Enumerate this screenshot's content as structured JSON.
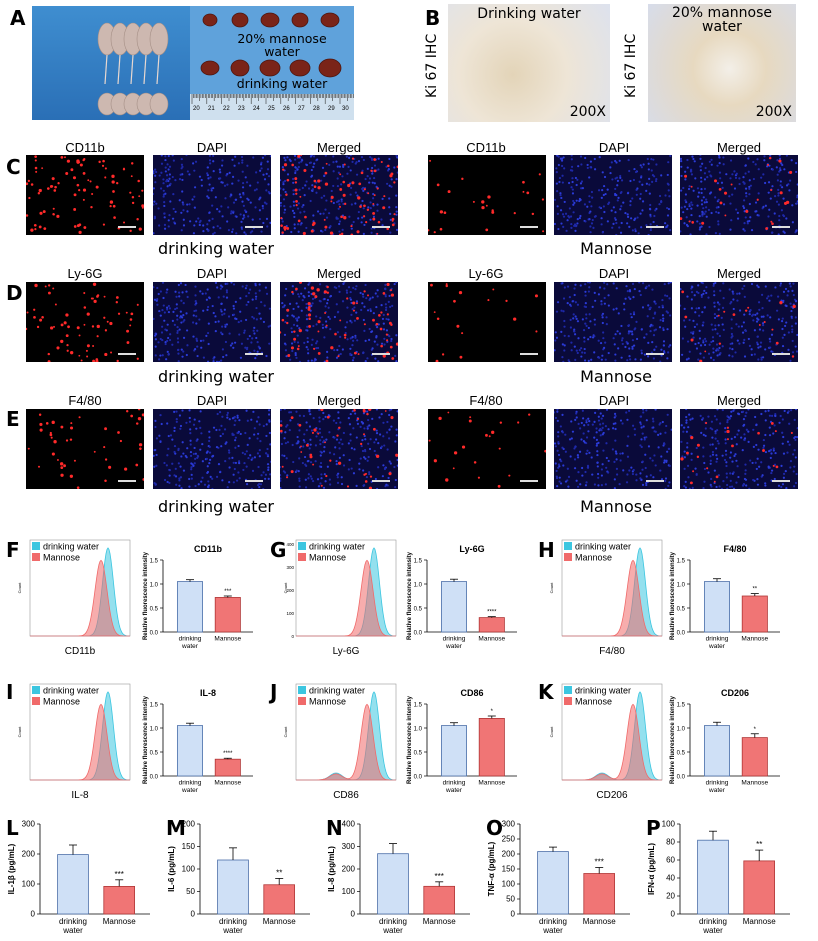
{
  "panel_letters": [
    "A",
    "B",
    "C",
    "D",
    "E",
    "F",
    "G",
    "H",
    "I",
    "J",
    "K",
    "L",
    "M",
    "N",
    "O",
    "P"
  ],
  "panelA": {
    "label_mannose": "20% mannose\nwater",
    "label_drinking": "drinking water",
    "ruler_ticks": [
      "20",
      "21",
      "22",
      "23",
      "24",
      "25",
      "26",
      "27",
      "28",
      "29",
      "30"
    ]
  },
  "panelB": {
    "axis_label": "Ki 67 IHC",
    "images": [
      {
        "title": "Drinking water",
        "mag": "200X"
      },
      {
        "title": "20% mannose\nwater",
        "mag": "200X"
      }
    ]
  },
  "if_rows": [
    {
      "marker": "CD11b",
      "dapi": "DAPI",
      "merged": "Merged",
      "left_group": "drinking water",
      "right_group": "Mannose"
    },
    {
      "marker": "Ly-6G",
      "dapi": "DAPI",
      "merged": "Merged",
      "left_group": "drinking water",
      "right_group": "Mannose"
    },
    {
      "marker": "F4/80",
      "dapi": "DAPI",
      "merged": "Merged",
      "left_group": "drinking water",
      "right_group": "Mannose"
    }
  ],
  "colors": {
    "drinking": "#3cc6e0",
    "mannose": "#f06a6a",
    "bar_blue": "#cfe0f6",
    "bar_red": "#f07575"
  },
  "chart_data": [
    {
      "panel": "F",
      "type": "area",
      "xlabel": "CD11b",
      "ylabel": "Count",
      "legend": [
        "drinking water",
        "Mannose"
      ],
      "legend_position": "top-left",
      "peaks": {
        "drinking water": 1.0,
        "Mannose": 0.85
      }
    },
    {
      "panel": "F",
      "type": "bar",
      "title": "CD11b",
      "ylabel": "Relative fluorescence intensity",
      "categories": [
        "drinking\nwater",
        "Mannose"
      ],
      "values": [
        1.05,
        0.72
      ],
      "errors": [
        0.04,
        0.03
      ],
      "ylim": [
        0,
        1.5
      ],
      "yticks": [
        "0.0",
        "0.5",
        "1.0",
        "1.5"
      ],
      "significance": "***"
    },
    {
      "panel": "G",
      "type": "area",
      "xlabel": "Ly-6G",
      "ylabel": "Count",
      "legend": [
        "drinking water",
        "Mannose"
      ],
      "legend_position": "top-left",
      "yticks": [
        "0",
        "100",
        "200",
        "300",
        "400"
      ]
    },
    {
      "panel": "G",
      "type": "bar",
      "title": "Ly-6G",
      "ylabel": "Relative fluorescence intensity",
      "categories": [
        "drinking\nwater",
        "Mannose"
      ],
      "values": [
        1.05,
        0.3
      ],
      "errors": [
        0.05,
        0.02
      ],
      "ylim": [
        0,
        1.5
      ],
      "yticks": [
        "0.0",
        "0.5",
        "1.0",
        "1.5"
      ],
      "significance": "****"
    },
    {
      "panel": "H",
      "type": "area",
      "xlabel": "F4/80",
      "ylabel": "Count",
      "legend": [
        "drinking water",
        "Mannose"
      ],
      "legend_position": "top-left"
    },
    {
      "panel": "H",
      "type": "bar",
      "title": "F4/80",
      "ylabel": "Relative fluorescence intensity",
      "categories": [
        "drinking\nwater",
        "Mannose"
      ],
      "values": [
        1.05,
        0.75
      ],
      "errors": [
        0.06,
        0.05
      ],
      "ylim": [
        0,
        1.5
      ],
      "yticks": [
        "0.0",
        "0.5",
        "1.0",
        "1.5"
      ],
      "significance": "**"
    },
    {
      "panel": "I",
      "type": "area",
      "xlabel": "IL-8",
      "ylabel": "Count",
      "legend": [
        "drinking water",
        "Mannose"
      ],
      "legend_position": "top-left"
    },
    {
      "panel": "I",
      "type": "bar",
      "title": "IL-8",
      "ylabel": "Relative fluorescence intensity",
      "categories": [
        "drinking\nwater",
        "Mannose"
      ],
      "values": [
        1.05,
        0.35
      ],
      "errors": [
        0.05,
        0.02
      ],
      "ylim": [
        0,
        1.5
      ],
      "yticks": [
        "0.0",
        "0.5",
        "1.0",
        "1.5"
      ],
      "significance": "****"
    },
    {
      "panel": "J",
      "type": "area",
      "xlabel": "CD86",
      "ylabel": "Count",
      "legend": [
        "drinking water",
        "Mannose"
      ],
      "legend_position": "top-left"
    },
    {
      "panel": "J",
      "type": "bar",
      "title": "CD86",
      "ylabel": "Relative fluorescence intensity",
      "categories": [
        "drinking\nwater",
        "Mannose"
      ],
      "values": [
        1.05,
        1.2
      ],
      "errors": [
        0.06,
        0.05
      ],
      "ylim": [
        0,
        1.5
      ],
      "yticks": [
        "0.0",
        "0.5",
        "1.0",
        "1.5"
      ],
      "significance": "*"
    },
    {
      "panel": "K",
      "type": "area",
      "xlabel": "CD206",
      "ylabel": "Count",
      "legend": [
        "drinking water",
        "Mannose"
      ],
      "legend_position": "top-left"
    },
    {
      "panel": "K",
      "type": "bar",
      "title": "CD206",
      "ylabel": "Relative fluorescence intensity",
      "categories": [
        "drinking\nwater",
        "Mannose"
      ],
      "values": [
        1.05,
        0.8
      ],
      "errors": [
        0.07,
        0.08
      ],
      "ylim": [
        0,
        1.5
      ],
      "yticks": [
        "0.0",
        "0.5",
        "1.0",
        "1.5"
      ],
      "significance": "*"
    },
    {
      "panel": "L",
      "type": "bar",
      "ylabel": "IL-1β (pg/mL)",
      "categories": [
        "drinking\nwater",
        "Mannose"
      ],
      "values": [
        198,
        92
      ],
      "errors": [
        32,
        22
      ],
      "ylim": [
        0,
        300
      ],
      "yticks": [
        "0",
        "100",
        "200",
        "300"
      ],
      "significance": "***"
    },
    {
      "panel": "M",
      "type": "bar",
      "ylabel": "IL-6 (pg/mL)",
      "categories": [
        "drinking\nwater",
        "Mannose"
      ],
      "values": [
        120,
        65
      ],
      "errors": [
        27,
        14
      ],
      "ylim": [
        0,
        200
      ],
      "yticks": [
        "0",
        "50",
        "100",
        "150",
        "200"
      ],
      "significance": "**"
    },
    {
      "panel": "N",
      "type": "bar",
      "ylabel": "IL-8 (pg/mL)",
      "categories": [
        "drinking\nwater",
        "Mannose"
      ],
      "values": [
        268,
        123
      ],
      "errors": [
        45,
        20
      ],
      "ylim": [
        0,
        400
      ],
      "yticks": [
        "0",
        "100",
        "200",
        "300",
        "400"
      ],
      "significance": "***"
    },
    {
      "panel": "O",
      "type": "bar",
      "ylabel": "TNF-α (pg/mL)",
      "categories": [
        "drinking\nwater",
        "Mannose"
      ],
      "values": [
        208,
        135
      ],
      "errors": [
        15,
        20
      ],
      "ylim": [
        0,
        300
      ],
      "yticks": [
        "0",
        "50",
        "100",
        "150",
        "200",
        "250",
        "300"
      ],
      "significance": "***"
    },
    {
      "panel": "P",
      "type": "bar",
      "ylabel": "IFN-α (pg/mL)",
      "categories": [
        "drinking\nwater",
        "Mannose"
      ],
      "values": [
        82,
        59
      ],
      "errors": [
        10,
        12
      ],
      "ylim": [
        0,
        100
      ],
      "yticks": [
        "0",
        "20",
        "40",
        "60",
        "80",
        "100"
      ],
      "significance": "**"
    }
  ]
}
